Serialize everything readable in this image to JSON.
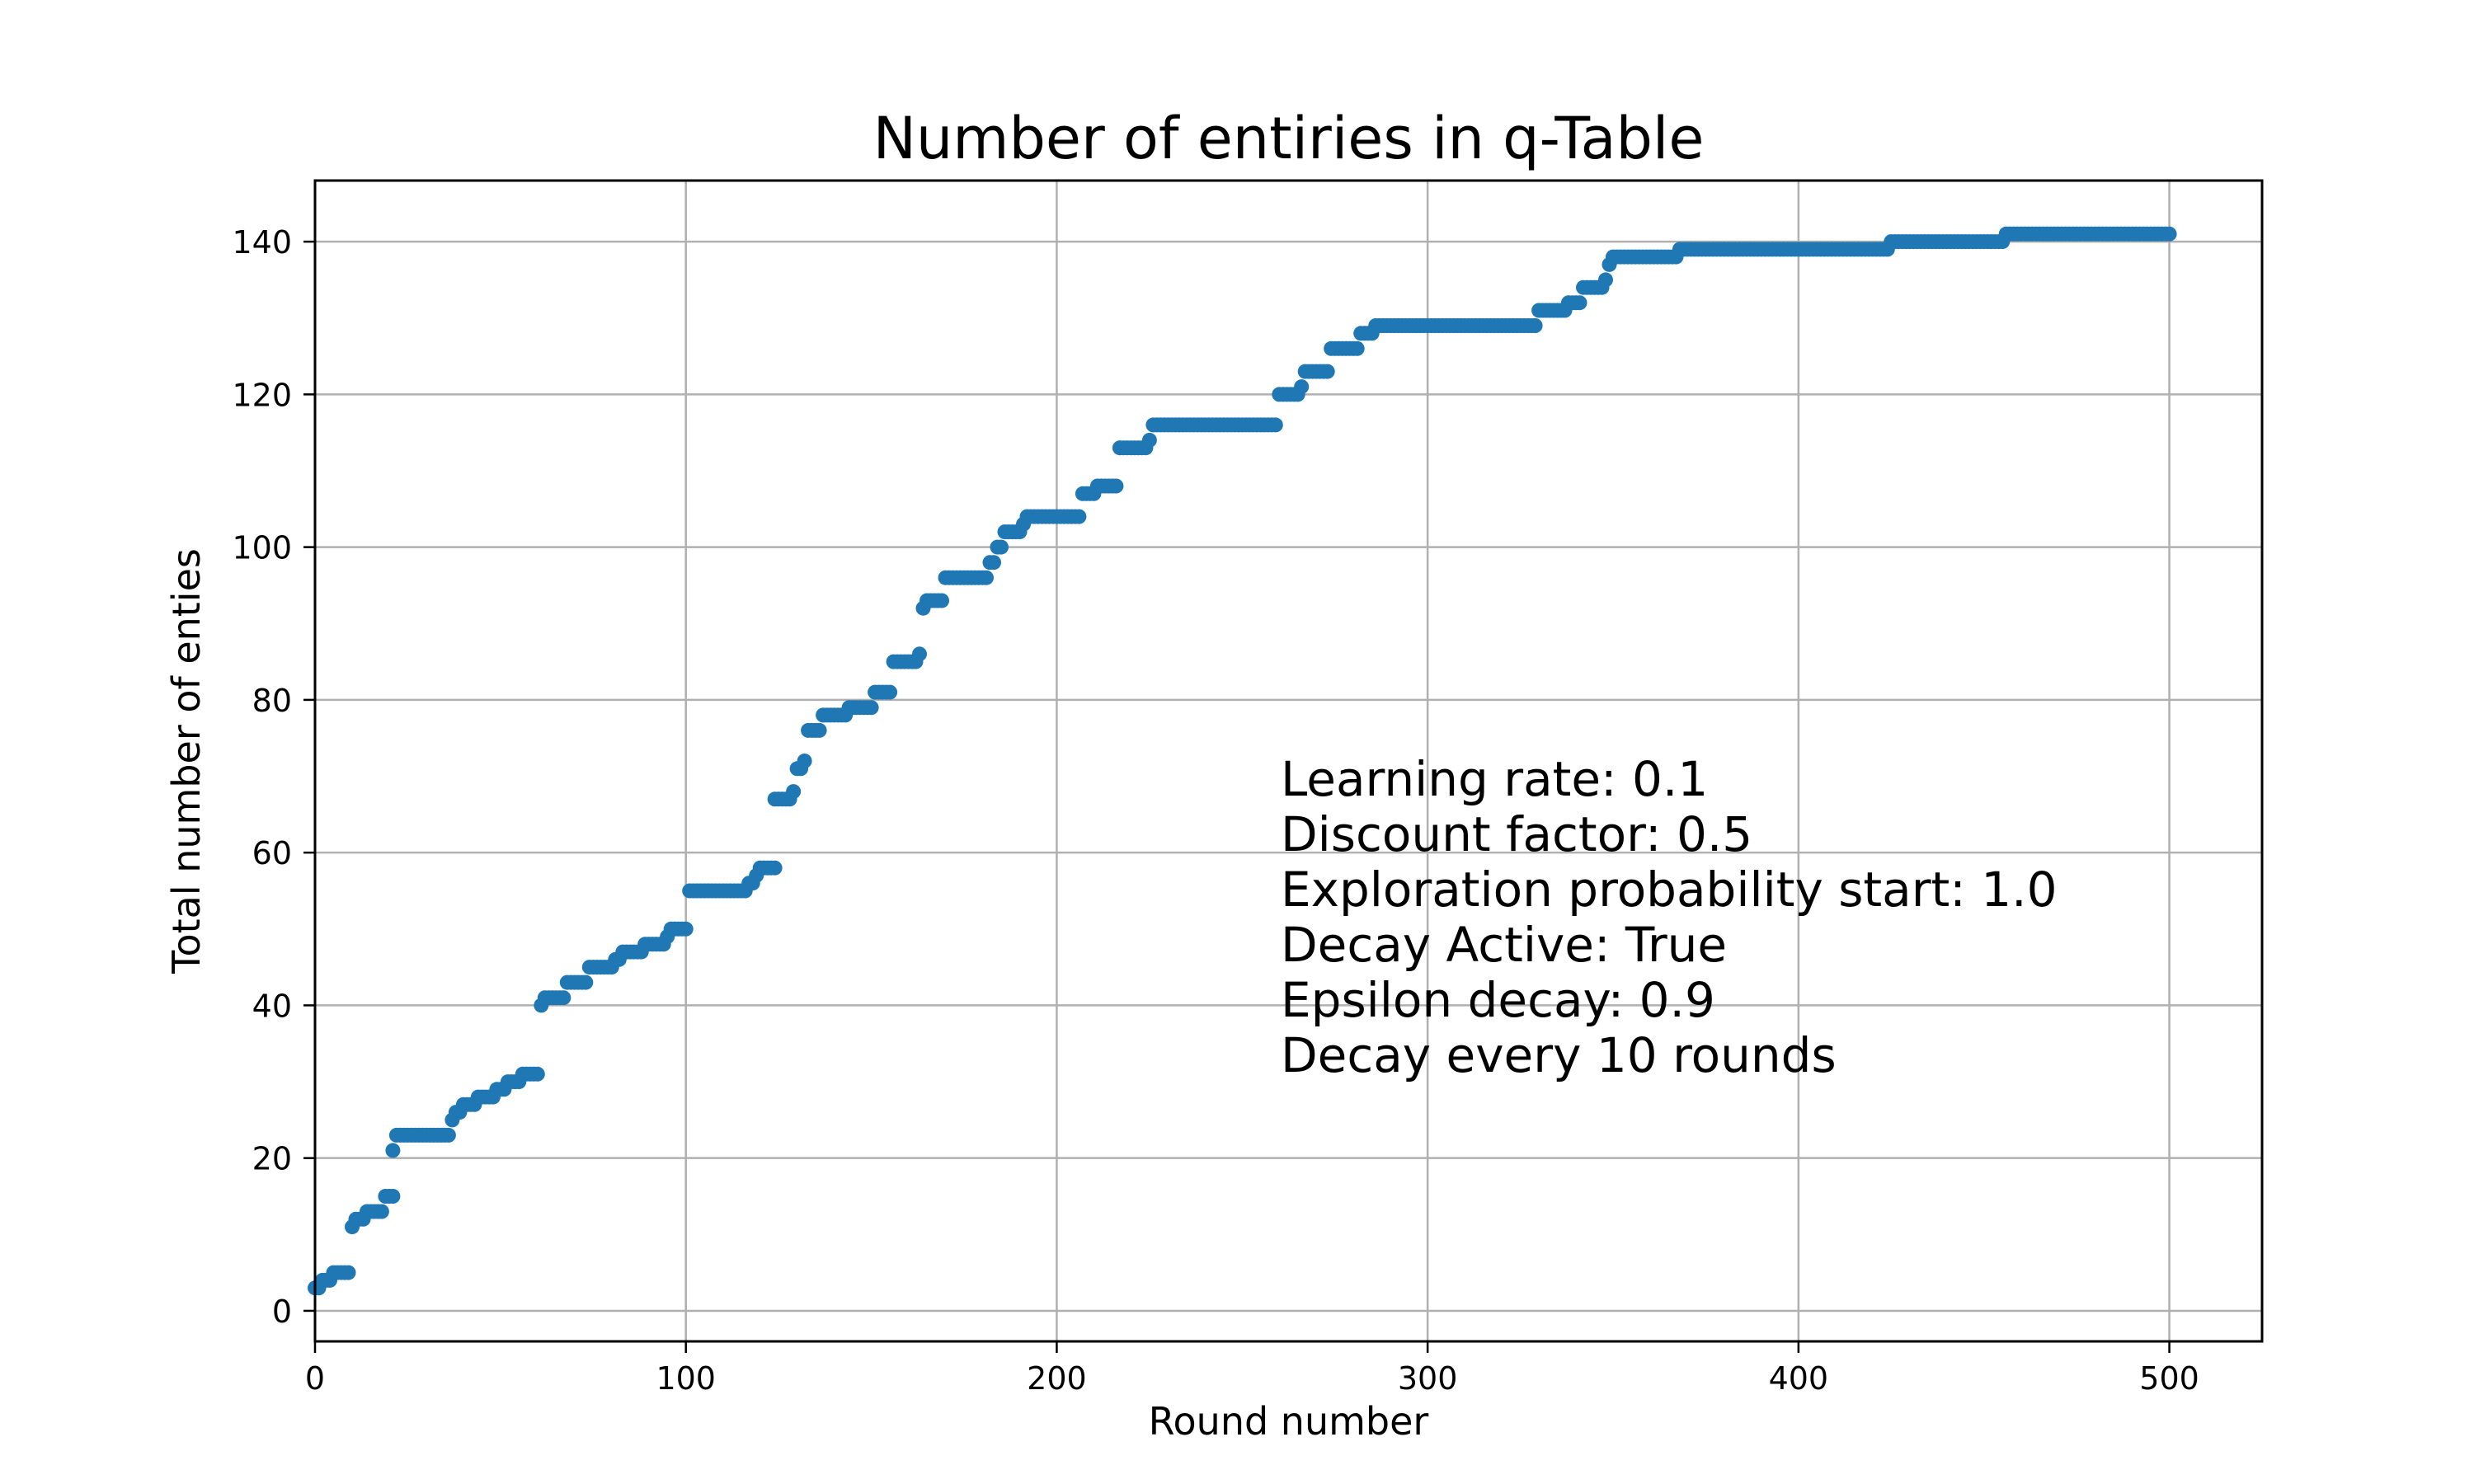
{
  "chart_data": {
    "type": "scatter",
    "title": "Number of entiries in q-Table",
    "xlabel": "Round number",
    "ylabel": "Total number of enties",
    "xlim": [
      0,
      525
    ],
    "ylim": [
      -4,
      148
    ],
    "xticks": [
      0,
      100,
      200,
      300,
      400,
      500
    ],
    "yticks": [
      0,
      20,
      40,
      60,
      80,
      100,
      120,
      140
    ],
    "grid": true,
    "marker_color": "#1f77b4",
    "annotations": [
      "Learning rate: 0.1",
      "Discount factor: 0.5",
      "Exploration probability start: 1.0",
      "Decay Active: True",
      "Epsilon decay: 0.9",
      "Decay every 10 rounds"
    ],
    "steps": [
      [
        0,
        3
      ],
      [
        1,
        3
      ],
      [
        2,
        4
      ],
      [
        4,
        4
      ],
      [
        5,
        5
      ],
      [
        9,
        5
      ],
      [
        10,
        11
      ],
      [
        11,
        12
      ],
      [
        13,
        12
      ],
      [
        14,
        13
      ],
      [
        18,
        13
      ],
      [
        19,
        15
      ],
      [
        21,
        15
      ],
      [
        21,
        21
      ],
      [
        22,
        23
      ],
      [
        36,
        23
      ],
      [
        37,
        25
      ],
      [
        38,
        26
      ],
      [
        40,
        27
      ],
      [
        43,
        27
      ],
      [
        44,
        28
      ],
      [
        48,
        28
      ],
      [
        49,
        29
      ],
      [
        51,
        29
      ],
      [
        52,
        30
      ],
      [
        55,
        30
      ],
      [
        56,
        31
      ],
      [
        60,
        31
      ],
      [
        61,
        40
      ],
      [
        62,
        41
      ],
      [
        67,
        41
      ],
      [
        68,
        43
      ],
      [
        73,
        43
      ],
      [
        74,
        45
      ],
      [
        80,
        45
      ],
      [
        81,
        46
      ],
      [
        83,
        47
      ],
      [
        88,
        47
      ],
      [
        89,
        48
      ],
      [
        94,
        48
      ],
      [
        95,
        49
      ],
      [
        96,
        50
      ],
      [
        100,
        50
      ],
      [
        101,
        55
      ],
      [
        116,
        55
      ],
      [
        117,
        56
      ],
      [
        119,
        57
      ],
      [
        120,
        58
      ],
      [
        124,
        58
      ],
      [
        124,
        67
      ],
      [
        128,
        67
      ],
      [
        129,
        68
      ],
      [
        130,
        71
      ],
      [
        132,
        72
      ],
      [
        133,
        76
      ],
      [
        136,
        76
      ],
      [
        137,
        78
      ],
      [
        143,
        78
      ],
      [
        144,
        79
      ],
      [
        150,
        79
      ],
      [
        151,
        81
      ],
      [
        155,
        81
      ],
      [
        156,
        85
      ],
      [
        162,
        85
      ],
      [
        163,
        86
      ],
      [
        164,
        92
      ],
      [
        165,
        93
      ],
      [
        169,
        93
      ],
      [
        170,
        96
      ],
      [
        181,
        96
      ],
      [
        182,
        98
      ],
      [
        184,
        100
      ],
      [
        186,
        102
      ],
      [
        190,
        102
      ],
      [
        191,
        103
      ],
      [
        192,
        104
      ],
      [
        206,
        104
      ],
      [
        207,
        107
      ],
      [
        210,
        107
      ],
      [
        211,
        108
      ],
      [
        216,
        108
      ],
      [
        217,
        113
      ],
      [
        224,
        113
      ],
      [
        225,
        114
      ],
      [
        226,
        116
      ],
      [
        259,
        116
      ],
      [
        260,
        120
      ],
      [
        265,
        120
      ],
      [
        266,
        121
      ],
      [
        267,
        123
      ],
      [
        273,
        123
      ],
      [
        274,
        126
      ],
      [
        281,
        126
      ],
      [
        282,
        128
      ],
      [
        285,
        128
      ],
      [
        286,
        129
      ],
      [
        329,
        129
      ],
      [
        330,
        131
      ],
      [
        337,
        131
      ],
      [
        338,
        132
      ],
      [
        341,
        132
      ],
      [
        342,
        134
      ],
      [
        347,
        134
      ],
      [
        348,
        135
      ],
      [
        349,
        137
      ],
      [
        350,
        138
      ],
      [
        367,
        138
      ],
      [
        368,
        139
      ],
      [
        424,
        139
      ],
      [
        425,
        140
      ],
      [
        455,
        140
      ],
      [
        456,
        141
      ],
      [
        500,
        141
      ]
    ]
  }
}
